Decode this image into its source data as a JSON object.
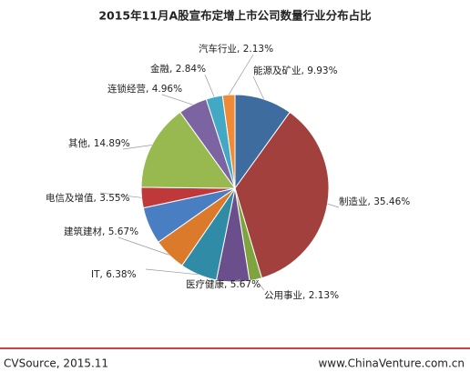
{
  "chart_data": {
    "type": "pie",
    "title": "2015年11月A股宣布定增上市公司数量行业分布占比",
    "categories": [
      "能源及矿业",
      "制造业",
      "公用事业",
      "医疗健康",
      "IT",
      "建筑建材",
      null,
      "电信及增值",
      "其他",
      "连锁经营",
      "金融",
      "汽车行业"
    ],
    "values": [
      9.93,
      35.46,
      2.13,
      5.67,
      6.38,
      5.67,
      6.39,
      3.55,
      14.89,
      4.96,
      2.84,
      2.13
    ],
    "value_labels": [
      "9.93%",
      "35.46%",
      "2.13%",
      "5.67%",
      "6.38%",
      "5.67%",
      null,
      "3.55%",
      "14.89%",
      "4.96%",
      "2.84%",
      "2.13%"
    ],
    "label_separator": ", ",
    "colors": [
      "#3f6c9f",
      "#a1403d",
      "#7fa43f",
      "#6a4f8c",
      "#2f8ba6",
      "#dc7a2b",
      "#4a7ec3",
      "#c0393a",
      "#97b94f",
      "#7c64a3",
      "#42a8c4",
      "#f08a36"
    ],
    "source": "CVSource, 2015.11",
    "website": "www.ChinaVenture.com.cn"
  }
}
